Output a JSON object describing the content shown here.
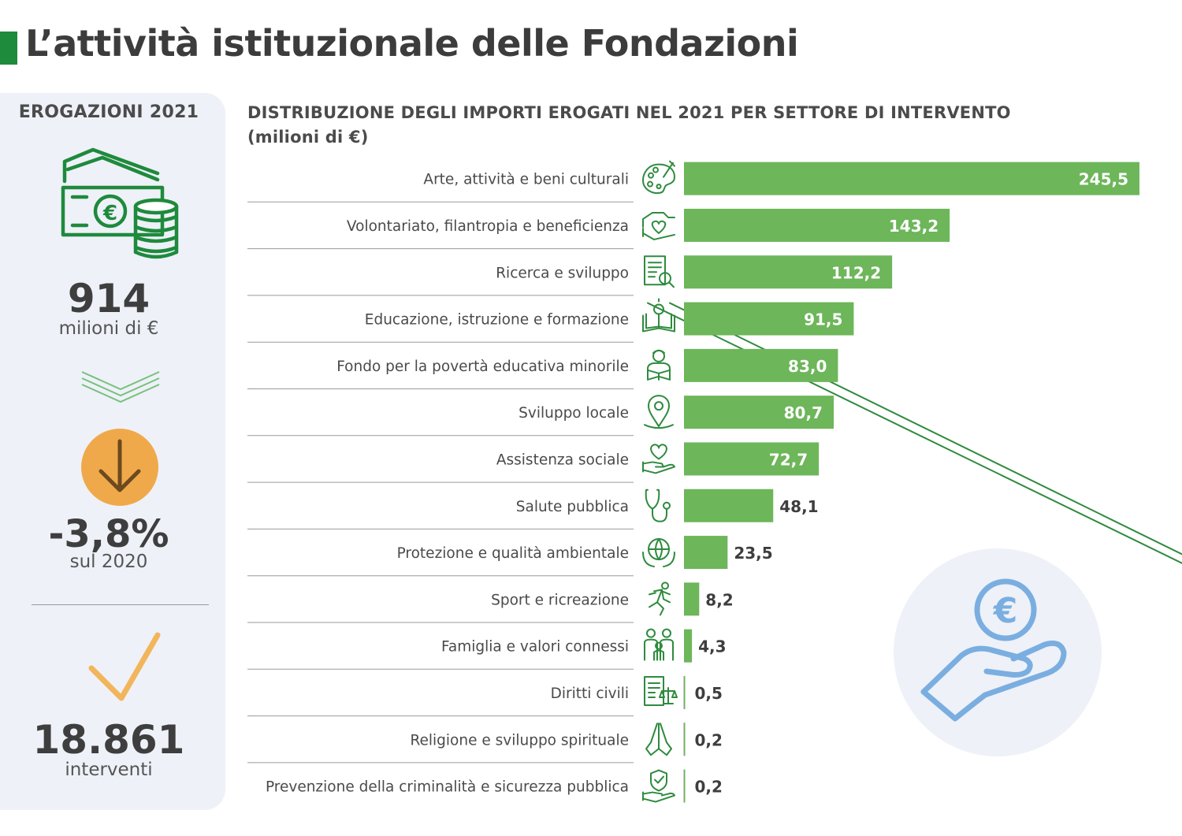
{
  "page": {
    "title": "L’attività istituzionale delle Fondazioni"
  },
  "sidebar": {
    "heading": "EROGAZIONI 2021",
    "total_value": "914",
    "total_unit": "milioni di €",
    "change_value": "-3,8%",
    "change_note": "sul 2020",
    "interventions_value": "18.861",
    "interventions_label": "interventi",
    "icons": [
      "money-euro-icon",
      "double-chevron-down-icon",
      "down-arrow-circle-icon",
      "checkmark-icon"
    ],
    "colors": {
      "panel": "#eef1f8",
      "green": "#1e8a3c",
      "orange": "#f0a94a",
      "checkmark": "#f2b55a"
    }
  },
  "chart_heading": {
    "line1": "DISTRIBUZIONE DEGLI IMPORTI EROGATI NEL 2021 PER SETTORE DI INTERVENTO",
    "line2": "(milioni di €)"
  },
  "chart_data": {
    "type": "bar",
    "orientation": "horizontal",
    "title": "DISTRIBUZIONE DEGLI IMPORTI EROGATI NEL 2021 PER SETTORE DI INTERVENTO (milioni di €)",
    "categories": [
      "Arte, attività e beni culturali",
      "Volontariato, filantropia e beneficienza",
      "Ricerca e sviluppo",
      "Educazione, istruzione e formazione",
      "Fondo per la povertà educativa minorile",
      "Sviluppo locale",
      "Assistenza sociale",
      "Salute pubblica",
      "Protezione e qualità ambientale",
      "Sport e ricreazione",
      "Famiglia e valori connessi",
      "Diritti civili",
      "Religione e sviluppo spirituale",
      "Prevenzione della criminalità e sicurezza pubblica"
    ],
    "values": [
      245.5,
      143.2,
      112.2,
      91.5,
      83.0,
      80.7,
      72.7,
      48.1,
      23.5,
      8.2,
      4.3,
      0.5,
      0.2,
      0.2
    ],
    "value_labels": [
      "245,5",
      "143,2",
      "112,2",
      "91,5",
      "83,0",
      "80,7",
      "72,7",
      "48,1",
      "23,5",
      "8,2",
      "4,3",
      "0,5",
      "0,2",
      "0,2"
    ],
    "icons": [
      "palette-icon",
      "hand-heart-icon",
      "research-document-icon",
      "open-book-icon",
      "child-reading-icon",
      "location-pin-icon",
      "heart-hand-icon",
      "stethoscope-icon",
      "globe-hands-icon",
      "running-person-icon",
      "family-icon",
      "legal-document-icon",
      "praying-hands-icon",
      "shield-hand-icon"
    ],
    "xlim": [
      0,
      245.5
    ],
    "grid": false,
    "legend": "none",
    "bar_color": "#6db65a",
    "icon_color": "#2e8b3e"
  },
  "decor": {
    "icon": "euro-hand-icon",
    "colors": {
      "circle": "#eef1f8",
      "stroke": "#7aaee0"
    }
  }
}
